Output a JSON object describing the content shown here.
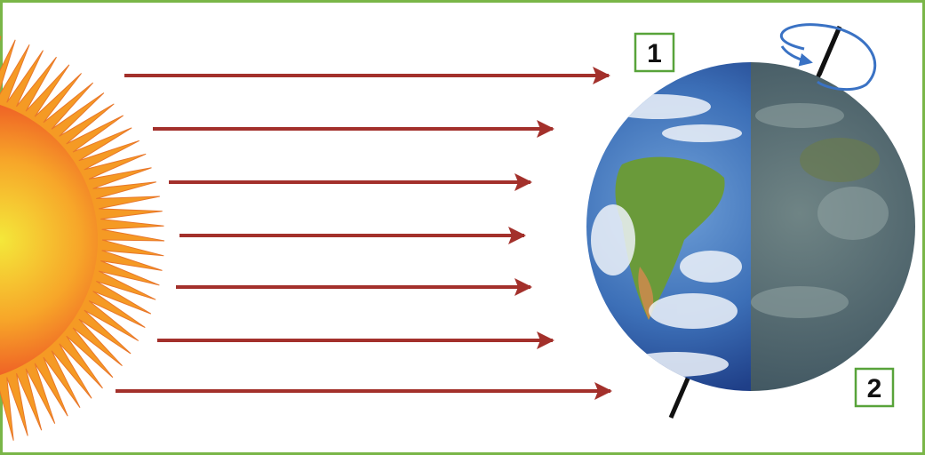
{
  "labels": [
    "1",
    "2"
  ]
}
